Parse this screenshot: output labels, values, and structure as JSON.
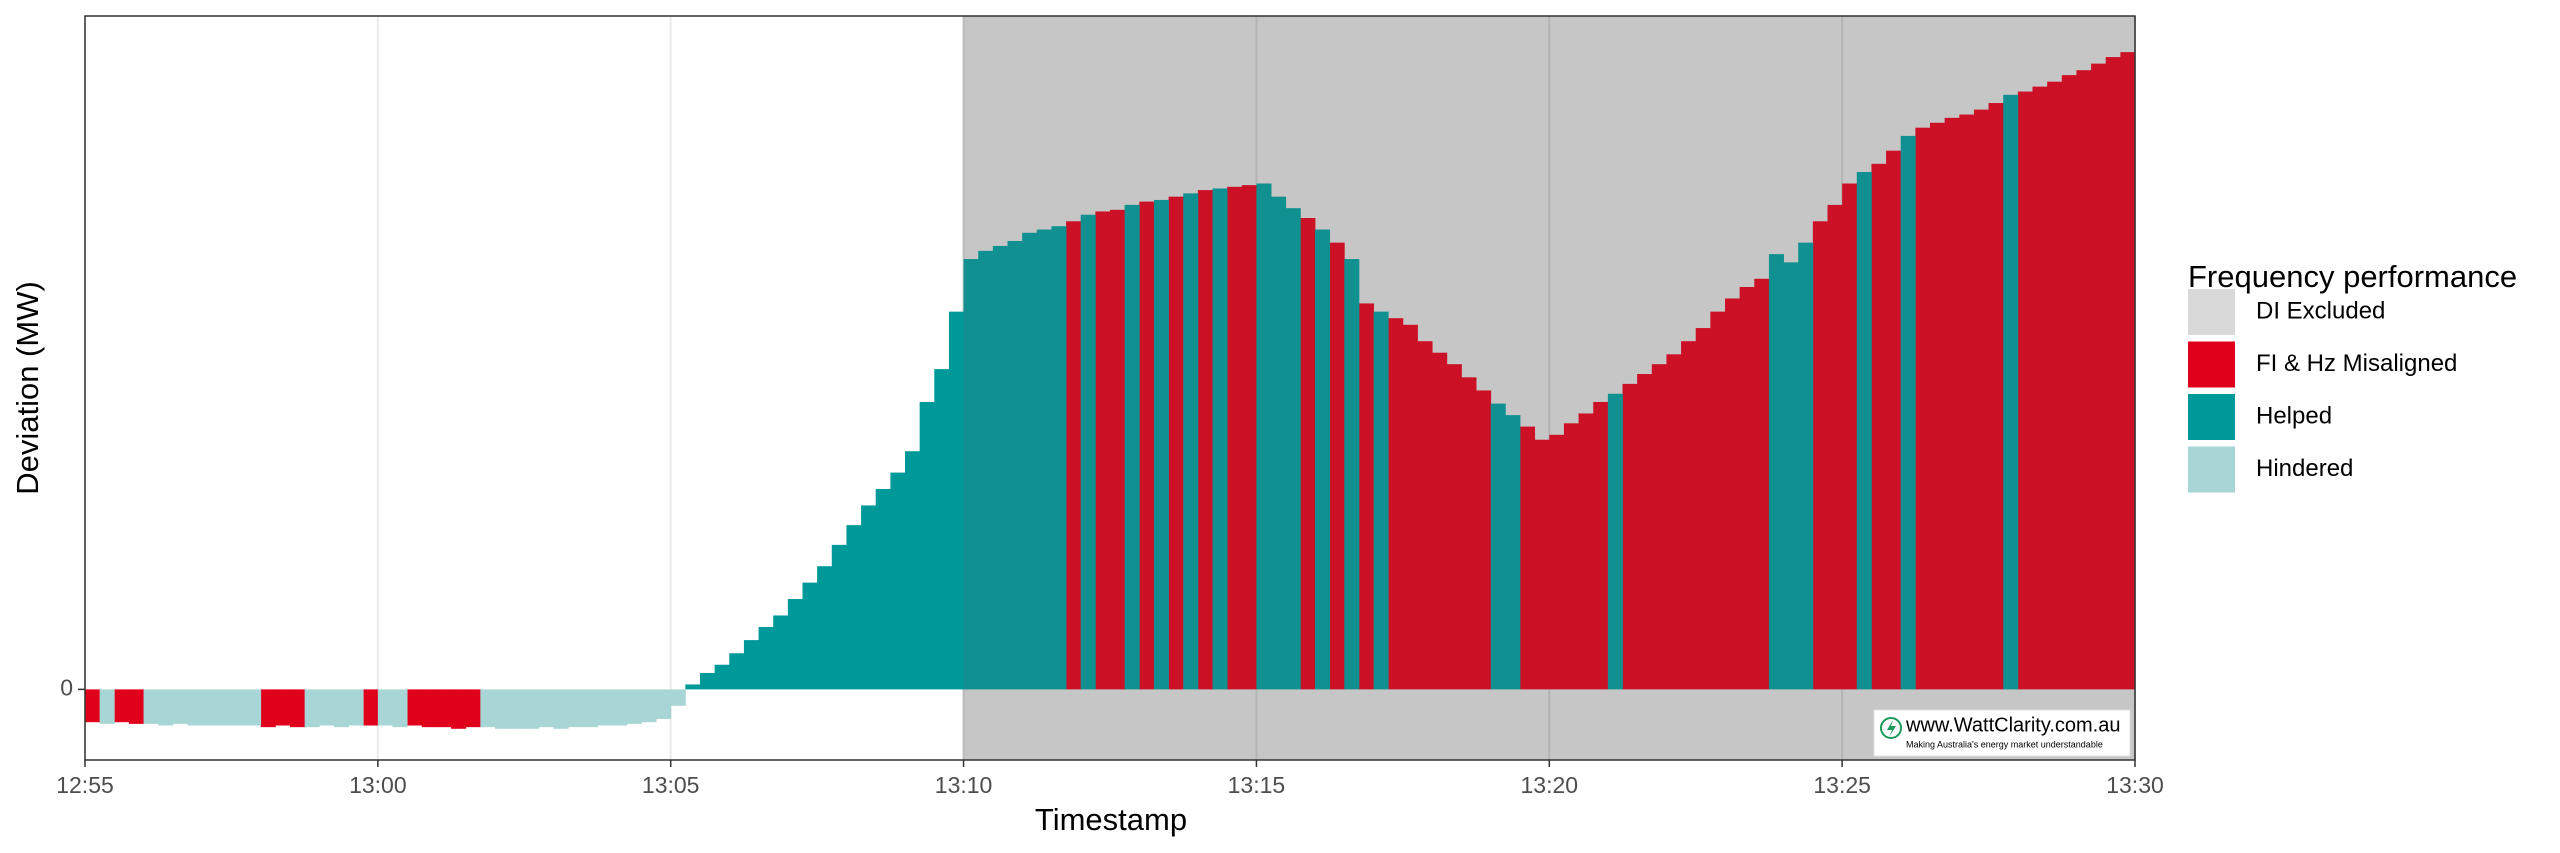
{
  "chart_data": {
    "type": "bar",
    "xlabel": "Timestamp",
    "ylabel": "Deviation (MW)",
    "legend_title": "Frequency performance",
    "legend": "right",
    "grid": true,
    "xlim": [
      0,
      35
    ],
    "xticks": [
      {
        "value": 0,
        "label": "12:55"
      },
      {
        "value": 5,
        "label": "13:00"
      },
      {
        "value": 10,
        "label": "13:05"
      },
      {
        "value": 15,
        "label": "13:10"
      },
      {
        "value": 20,
        "label": "13:15"
      },
      {
        "value": 25,
        "label": "13:20"
      },
      {
        "value": 30,
        "label": "13:25"
      },
      {
        "value": 35,
        "label": "13:30"
      }
    ],
    "ylim": [
      -43,
      410
    ],
    "yticks": [
      0
    ],
    "excluded": {
      "name": "DI Excluded",
      "color": "#d9d9d9",
      "range": [
        15,
        35
      ]
    },
    "x": [
      0,
      0.25,
      0.5,
      0.75,
      1,
      1.25,
      1.5,
      1.75,
      2,
      2.25,
      2.5,
      2.75,
      3,
      3.25,
      3.5,
      3.75,
      4,
      4.25,
      4.5,
      4.75,
      5,
      5.25,
      5.5,
      5.75,
      6,
      6.25,
      6.5,
      6.75,
      7,
      7.25,
      7.5,
      7.75,
      8,
      8.25,
      8.5,
      8.75,
      9,
      9.25,
      9.5,
      9.75,
      10,
      10.25,
      10.5,
      10.75,
      11,
      11.25,
      11.5,
      11.75,
      12,
      12.25,
      12.5,
      12.75,
      13,
      13.25,
      13.5,
      13.75,
      14,
      14.25,
      14.5,
      14.75,
      15,
      15.25,
      15.5,
      15.75,
      16,
      16.25,
      16.5,
      16.75,
      17,
      17.25,
      17.5,
      17.75,
      18,
      18.25,
      18.5,
      18.75,
      19,
      19.25,
      19.5,
      19.75,
      20,
      20.25,
      20.5,
      20.75,
      21,
      21.25,
      21.5,
      21.75,
      22,
      22.25,
      22.5,
      22.75,
      23,
      23.25,
      23.5,
      23.75,
      24,
      24.25,
      24.5,
      24.75,
      25,
      25.25,
      25.5,
      25.75,
      26,
      26.25,
      26.5,
      26.75,
      27,
      27.25,
      27.5,
      27.75,
      28,
      28.25,
      28.5,
      28.75,
      29,
      29.25,
      29.5,
      29.75,
      30,
      30.25,
      30.5,
      30.75,
      31,
      31.25,
      31.5,
      31.75,
      32,
      32.25,
      32.5,
      32.75,
      33,
      33.25,
      33.5,
      33.75,
      34,
      34.25,
      34.5,
      34.75
    ],
    "series": [
      {
        "name": "FI & Hz Misaligned",
        "color": "#e0001b",
        "values": [
          -20,
          null,
          -20,
          -21,
          null,
          null,
          null,
          null,
          null,
          null,
          null,
          null,
          -23,
          -22,
          -23,
          null,
          null,
          null,
          null,
          -22,
          null,
          null,
          -22,
          -23,
          -23,
          -24,
          -23,
          null,
          null,
          null,
          null,
          null,
          null,
          null,
          null,
          null,
          null,
          null,
          null,
          null,
          null,
          null,
          null,
          null,
          null,
          null,
          null,
          null,
          null,
          null,
          null,
          null,
          null,
          null,
          null,
          null,
          null,
          null,
          null,
          null,
          null,
          null,
          null,
          null,
          null,
          null,
          null,
          285,
          null,
          291,
          292,
          null,
          297,
          null,
          300,
          null,
          304,
          null,
          306,
          307,
          null,
          null,
          null,
          287,
          null,
          272,
          null,
          235,
          null,
          226,
          222,
          212,
          205,
          198,
          190,
          182,
          null,
          null,
          160,
          152,
          155,
          162,
          168,
          175,
          null,
          186,
          192,
          198,
          204,
          212,
          220,
          230,
          238,
          245,
          250,
          null,
          null,
          null,
          285,
          295,
          308,
          null,
          320,
          328,
          null,
          342,
          345,
          348,
          350,
          353,
          357,
          null,
          364,
          367,
          370,
          374,
          377,
          381,
          385,
          388
        ]
      },
      {
        "name": "Helped",
        "color": "#009999",
        "values": [
          null,
          null,
          null,
          null,
          null,
          null,
          null,
          null,
          null,
          null,
          null,
          null,
          null,
          null,
          null,
          null,
          null,
          null,
          null,
          null,
          null,
          null,
          null,
          null,
          null,
          null,
          null,
          null,
          null,
          null,
          null,
          null,
          null,
          null,
          null,
          null,
          null,
          null,
          null,
          null,
          null,
          3,
          10,
          15,
          22,
          30,
          38,
          45,
          55,
          65,
          75,
          88,
          100,
          112,
          122,
          132,
          145,
          175,
          195,
          230,
          262,
          267,
          270,
          273,
          278,
          280,
          282,
          null,
          289,
          null,
          null,
          295,
          null,
          298,
          null,
          302,
          null,
          305,
          null,
          null,
          308,
          300,
          293,
          null,
          280,
          null,
          262,
          null,
          230,
          null,
          null,
          null,
          null,
          null,
          null,
          null,
          174,
          167,
          null,
          null,
          null,
          null,
          null,
          null,
          180,
          null,
          null,
          null,
          null,
          null,
          null,
          null,
          null,
          null,
          null,
          265,
          260,
          272,
          null,
          null,
          null,
          315,
          null,
          null,
          337,
          null,
          null,
          null,
          null,
          null,
          null,
          362,
          null,
          null,
          null,
          null,
          null,
          null,
          null,
          null
        ]
      },
      {
        "name": "Hindered",
        "color": "#a8d5d5",
        "values": [
          null,
          -21,
          null,
          null,
          -21,
          -22,
          -21,
          -22,
          -22,
          -22,
          -22,
          -22,
          null,
          null,
          null,
          -23,
          -22,
          -23,
          -22,
          null,
          -22,
          -23,
          null,
          null,
          null,
          null,
          null,
          -23,
          -24,
          -24,
          -24,
          -23,
          -24,
          -23,
          -23,
          -22,
          -22,
          -21,
          -20,
          -18,
          -10,
          null,
          null,
          null,
          null,
          null,
          null,
          null,
          null,
          null,
          null,
          null,
          null,
          null,
          null,
          null,
          null,
          null,
          null,
          null,
          null,
          null,
          null,
          null,
          null,
          null,
          null,
          null,
          null,
          null,
          null,
          null,
          null,
          null,
          null,
          null,
          null,
          null,
          null,
          null,
          null,
          null,
          null,
          null,
          null,
          null,
          null,
          null,
          null,
          null,
          null,
          null,
          null,
          null,
          null,
          null,
          null,
          null,
          null,
          null,
          null,
          null,
          null,
          null,
          null,
          null,
          null,
          null,
          null,
          null,
          null,
          null,
          null,
          null,
          null,
          null,
          null,
          null,
          null,
          null,
          null,
          null,
          null,
          null,
          null,
          null,
          null,
          null,
          null,
          null,
          null,
          null,
          null,
          null,
          null,
          null,
          null,
          null,
          null,
          null
        ]
      }
    ]
  },
  "watermark": {
    "text": "www.WattClarity.com.au",
    "tagline": "Making Australia's energy market understandable"
  }
}
